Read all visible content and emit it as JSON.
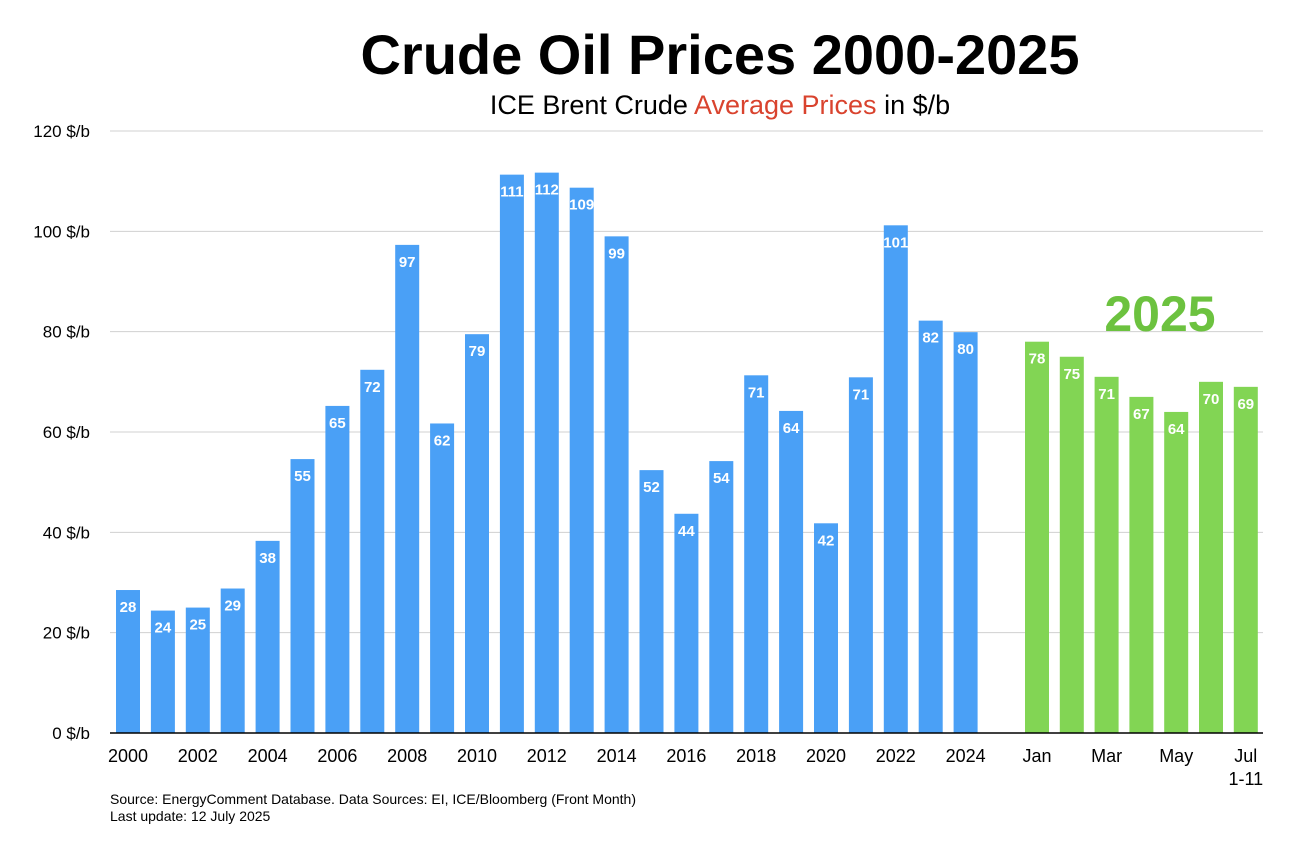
{
  "title": "Crude Oil Prices 2000-2025",
  "subtitle": {
    "prefix": "ICE Brent Crude ",
    "highlight": "Average Prices",
    "suffix": " in $/b"
  },
  "source_line": "Source: EnergyComment Database. Data Sources: EI, ICE/Bloomberg (Front Month)",
  "update_line": "Last update: 12 July 2025",
  "colors": {
    "annual_bar": "#4aa0f6",
    "monthly_bar": "#82d554",
    "highlight_text": "#d9432e",
    "year_label": "#6cc23f",
    "grid": "#d0d0d0"
  },
  "chart_data": {
    "type": "bar",
    "ylim": [
      0,
      120
    ],
    "yticks": [
      {
        "value": 0,
        "label": "0 $/b"
      },
      {
        "value": 20,
        "label": "20 $/b"
      },
      {
        "value": 40,
        "label": "40 $/b"
      },
      {
        "value": 60,
        "label": "60 $/b"
      },
      {
        "value": 80,
        "label": "80 $/b"
      },
      {
        "value": 100,
        "label": "100 $/b"
      },
      {
        "value": 120,
        "label": "120 $/b"
      }
    ],
    "grid": true,
    "annual": {
      "categories": [
        "2000",
        "2001",
        "2002",
        "2003",
        "2004",
        "2005",
        "2006",
        "2007",
        "2008",
        "2009",
        "2010",
        "2011",
        "2012",
        "2013",
        "2014",
        "2015",
        "2016",
        "2017",
        "2018",
        "2019",
        "2020",
        "2021",
        "2022",
        "2023",
        "2024"
      ],
      "values": [
        28.5,
        24.4,
        25.0,
        28.8,
        38.3,
        54.6,
        65.2,
        72.4,
        97.3,
        61.7,
        79.5,
        111.3,
        111.7,
        108.7,
        99.0,
        52.4,
        43.7,
        54.2,
        71.3,
        64.2,
        41.8,
        70.9,
        101.2,
        82.2,
        79.9
      ],
      "labels": [
        "28",
        "24",
        "25",
        "29",
        "38",
        "55",
        "65",
        "72",
        "97",
        "62",
        "79",
        "111",
        "112",
        "109",
        "99",
        "52",
        "44",
        "54",
        "71",
        "64",
        "42",
        "71",
        "101",
        "82",
        "80"
      ],
      "tick_labels": [
        "2000",
        "",
        "2002",
        "",
        "2004",
        "",
        "2006",
        "",
        "2008",
        "",
        "2010",
        "",
        "2012",
        "",
        "2014",
        "",
        "2016",
        "",
        "2018",
        "",
        "2020",
        "",
        "2022",
        "",
        "2024"
      ]
    },
    "monthly_2025": {
      "group_label": "2025",
      "categories": [
        "Jan",
        "Feb",
        "Mar",
        "Apr",
        "May",
        "Jun",
        "Jul 1-11"
      ],
      "values": [
        78.0,
        75.0,
        71.0,
        67.0,
        64.0,
        70.0,
        69.0
      ],
      "labels": [
        "78",
        "75",
        "71",
        "67",
        "64",
        "70",
        "69"
      ],
      "tick_labels": [
        "Jan",
        "",
        "Mar",
        "",
        "May",
        "",
        "Jul"
      ],
      "tick_sublabel": "1-11"
    }
  }
}
